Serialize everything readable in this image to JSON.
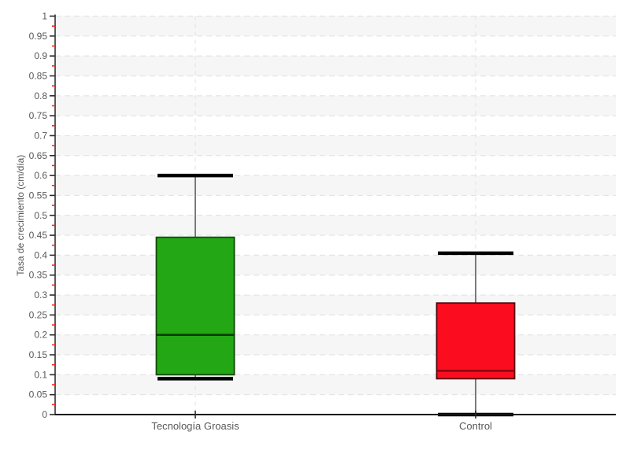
{
  "chart_data": {
    "type": "boxplot",
    "title": "",
    "xlabel": "",
    "ylabel": "Tasa de crecimiento (cm/día)",
    "ylim": [
      0,
      1
    ],
    "ytick_step": 0.05,
    "y_minor_tick_step": 0.025,
    "grid": true,
    "alternating_bands": true,
    "legend": "none",
    "categories": [
      "Tecnología Groasis",
      "Control"
    ],
    "series": [
      {
        "name": "Tecnología Groasis",
        "min": 0.09,
        "q1": 0.1,
        "median": 0.2,
        "q3": 0.445,
        "max": 0.6,
        "box_fill": "#23a714",
        "box_stroke": "#154a0c",
        "median_color": "#0e3a08"
      },
      {
        "name": "Control",
        "min": 0.0,
        "q1": 0.09,
        "median": 0.11,
        "q3": 0.28,
        "max": 0.405,
        "box_fill": "#fb0d1f",
        "box_stroke": "#550b10",
        "median_color": "#8f0312"
      }
    ]
  },
  "style": {
    "background": "#ffffff",
    "band_color": "#f6f6f6",
    "band_alt_color": "#ffffff",
    "grid_color": "#e4e4e4",
    "axis_color": "#141414",
    "major_tick_color": "#2a2a2a",
    "minor_tick_color": "#ff2419",
    "label_color": "#57585a",
    "whisker_color": "#7a7a7a",
    "cap_color": "#000000"
  }
}
